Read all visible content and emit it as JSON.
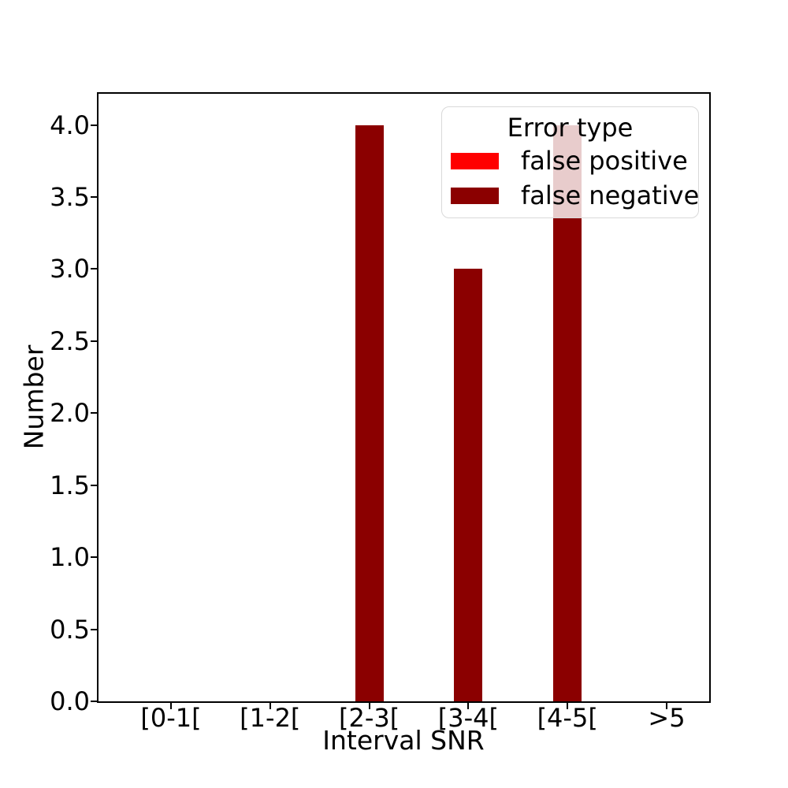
{
  "chart_data": {
    "type": "bar",
    "title": "",
    "xlabel": "Interval SNR",
    "ylabel": "Number",
    "categories": [
      "[0-1[",
      "[1-2[",
      "[2-3[",
      "[3-4[",
      "[4-5[",
      ">5"
    ],
    "series": [
      {
        "name": "false positive",
        "color": "#ff0000",
        "values": [
          0,
          0,
          0,
          0,
          0,
          0
        ]
      },
      {
        "name": "false negative",
        "color": "#8b0000",
        "values": [
          0,
          0,
          4,
          3,
          4,
          0
        ]
      }
    ],
    "ylim": [
      0,
      4.216
    ],
    "yticks": [
      "0.0",
      "0.5",
      "1.0",
      "1.5",
      "2.0",
      "2.5",
      "3.0",
      "3.5",
      "4.0"
    ],
    "grid": false,
    "legend": {
      "title": "Error type",
      "position": "upper right",
      "frame_color": "#d9d9d9",
      "frame_alpha": 0.8
    },
    "colors": {
      "axes": "#000000",
      "background": "#ffffff",
      "text": "#000000"
    }
  }
}
